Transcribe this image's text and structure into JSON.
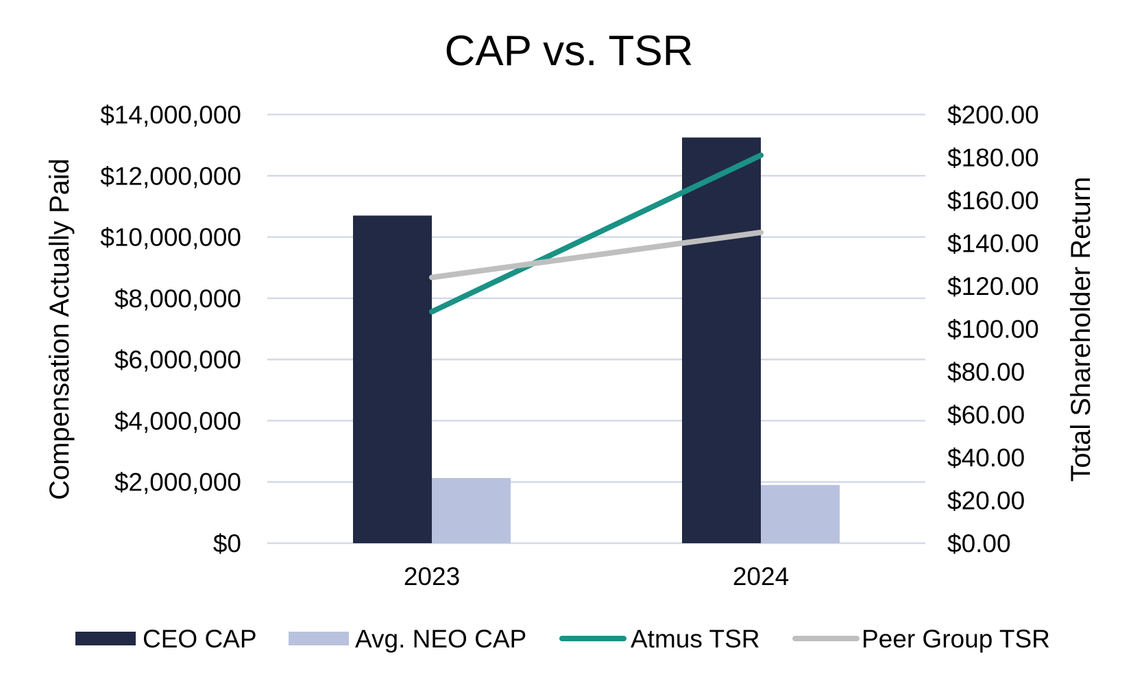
{
  "chart_data": {
    "type": "bar",
    "title": "CAP vs. TSR",
    "categories": [
      "2023",
      "2024"
    ],
    "ylabel_left": "Compensation Actually Paid",
    "ylabel_right": "Total Shareholder Return",
    "ylim_left": [
      0,
      14000000
    ],
    "ylim_right": [
      0,
      200
    ],
    "left_ticks": [
      "$0",
      "$2,000,000",
      "$4,000,000",
      "$6,000,000",
      "$8,000,000",
      "$10,000,000",
      "$12,000,000",
      "$14,000,000"
    ],
    "right_ticks": [
      "$0.00",
      "$20.00",
      "$40.00",
      "$60.00",
      "$80.00",
      "$100.00",
      "$120.00",
      "$140.00",
      "$160.00",
      "$180.00",
      "$200.00"
    ],
    "grid": true,
    "legend_position": "bottom",
    "series": [
      {
        "name": "CEO CAP",
        "type": "bar",
        "axis": "left",
        "color": "#212945",
        "values": [
          10700000,
          13250000
        ]
      },
      {
        "name": "Avg. NEO CAP",
        "type": "bar",
        "axis": "left",
        "color": "#b8c2de",
        "values": [
          2130000,
          1900000
        ]
      },
      {
        "name": "Atmus TSR",
        "type": "line",
        "axis": "right",
        "color": "#1a9285",
        "values": [
          108,
          181
        ]
      },
      {
        "name": "Peer Group TSR",
        "type": "line",
        "axis": "right",
        "color": "#bfbfbf",
        "values": [
          124,
          145
        ]
      }
    ],
    "colors": {
      "grid": "#d4d9ea"
    }
  }
}
